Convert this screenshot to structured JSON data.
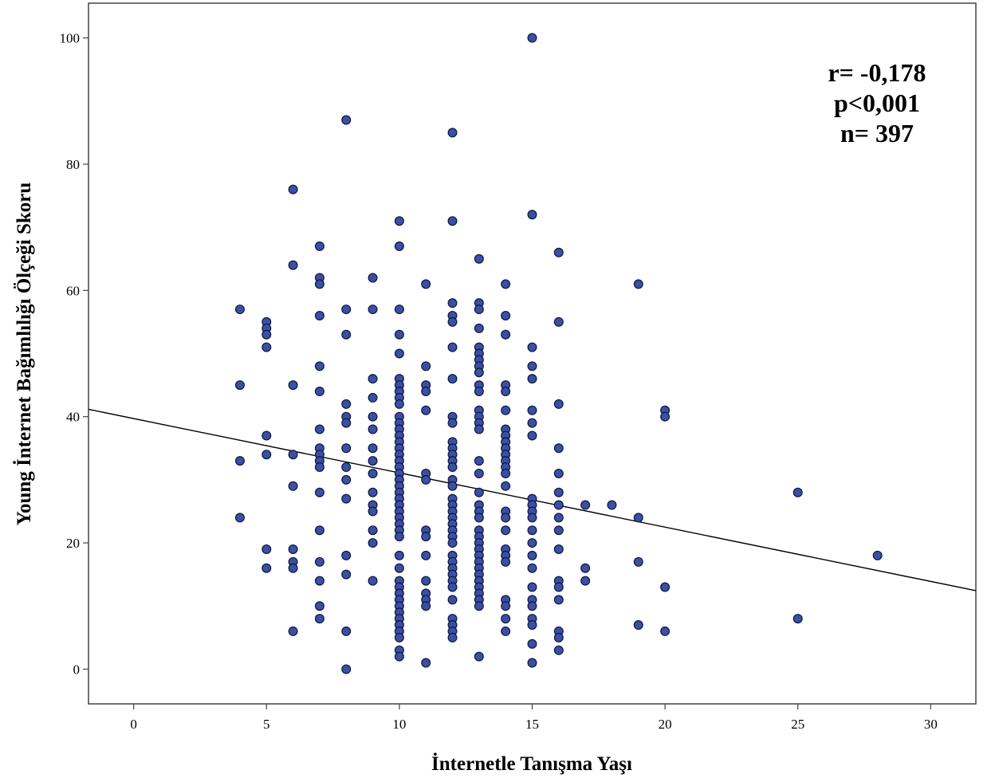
{
  "chart_data": {
    "type": "scatter",
    "title": "",
    "xlabel": "İnternetle Tanışma Yaşı",
    "ylabel": "Young İnternet Bağımlılığı Ölçeği Skoru",
    "xlim": [
      -1.7,
      31.7
    ],
    "ylim": [
      -5.5,
      105.5
    ],
    "x_ticks": [
      0,
      5,
      10,
      15,
      20,
      25,
      30
    ],
    "y_ticks": [
      0,
      20,
      40,
      60,
      80,
      100
    ],
    "grid": false,
    "legend": "none",
    "annotations": [
      "r= -0,178",
      "p<0,001",
      "n= 397"
    ],
    "fit_line": {
      "intercept": 39.7,
      "slope": -0.86
    },
    "colors": {
      "marker_fill": "#3b4fa3",
      "marker_edge": "#0d1840",
      "line": "#000000"
    },
    "points": [
      [
        4,
        57
      ],
      [
        4,
        45
      ],
      [
        4,
        33
      ],
      [
        4,
        24
      ],
      [
        5,
        55
      ],
      [
        5,
        54
      ],
      [
        5,
        53
      ],
      [
        5,
        51
      ],
      [
        5,
        37
      ],
      [
        5,
        34
      ],
      [
        5,
        19
      ],
      [
        5,
        16
      ],
      [
        6,
        76
      ],
      [
        6,
        64
      ],
      [
        6,
        45
      ],
      [
        6,
        34
      ],
      [
        6,
        29
      ],
      [
        6,
        19
      ],
      [
        6,
        17
      ],
      [
        6,
        16
      ],
      [
        6,
        6
      ],
      [
        7,
        67
      ],
      [
        7,
        62
      ],
      [
        7,
        61
      ],
      [
        7,
        56
      ],
      [
        7,
        48
      ],
      [
        7,
        44
      ],
      [
        7,
        38
      ],
      [
        7,
        35
      ],
      [
        7,
        34
      ],
      [
        7,
        33
      ],
      [
        7,
        32
      ],
      [
        7,
        28
      ],
      [
        7,
        22
      ],
      [
        7,
        17
      ],
      [
        7,
        14
      ],
      [
        7,
        10
      ],
      [
        7,
        8
      ],
      [
        8,
        87
      ],
      [
        8,
        57
      ],
      [
        8,
        53
      ],
      [
        8,
        42
      ],
      [
        8,
        40
      ],
      [
        8,
        39
      ],
      [
        8,
        35
      ],
      [
        8,
        32
      ],
      [
        8,
        30
      ],
      [
        8,
        27
      ],
      [
        8,
        18
      ],
      [
        8,
        15
      ],
      [
        8,
        6
      ],
      [
        8,
        0
      ],
      [
        9,
        62
      ],
      [
        9,
        57
      ],
      [
        9,
        46
      ],
      [
        9,
        43
      ],
      [
        9,
        40
      ],
      [
        9,
        38
      ],
      [
        9,
        35
      ],
      [
        9,
        33
      ],
      [
        9,
        31
      ],
      [
        9,
        28
      ],
      [
        9,
        26
      ],
      [
        9,
        25
      ],
      [
        9,
        22
      ],
      [
        9,
        20
      ],
      [
        9,
        14
      ],
      [
        10,
        71
      ],
      [
        10,
        67
      ],
      [
        10,
        57
      ],
      [
        10,
        53
      ],
      [
        10,
        50
      ],
      [
        10,
        46
      ],
      [
        10,
        45
      ],
      [
        10,
        44
      ],
      [
        10,
        43
      ],
      [
        10,
        42
      ],
      [
        10,
        40
      ],
      [
        10,
        39
      ],
      [
        10,
        38
      ],
      [
        10,
        37
      ],
      [
        10,
        36
      ],
      [
        10,
        35
      ],
      [
        10,
        34
      ],
      [
        10,
        33
      ],
      [
        10,
        32
      ],
      [
        10,
        31
      ],
      [
        10,
        30
      ],
      [
        10,
        29
      ],
      [
        10,
        28
      ],
      [
        10,
        27
      ],
      [
        10,
        26
      ],
      [
        10,
        25
      ],
      [
        10,
        24
      ],
      [
        10,
        23
      ],
      [
        10,
        22
      ],
      [
        10,
        21
      ],
      [
        10,
        18
      ],
      [
        10,
        16
      ],
      [
        10,
        14
      ],
      [
        10,
        13
      ],
      [
        10,
        12
      ],
      [
        10,
        11
      ],
      [
        10,
        10
      ],
      [
        10,
        9
      ],
      [
        10,
        8
      ],
      [
        10,
        7
      ],
      [
        10,
        6
      ],
      [
        10,
        5
      ],
      [
        10,
        3
      ],
      [
        10,
        2
      ],
      [
        11,
        61
      ],
      [
        11,
        48
      ],
      [
        11,
        45
      ],
      [
        11,
        44
      ],
      [
        11,
        41
      ],
      [
        11,
        31
      ],
      [
        11,
        30
      ],
      [
        11,
        22
      ],
      [
        11,
        21
      ],
      [
        11,
        18
      ],
      [
        11,
        14
      ],
      [
        11,
        12
      ],
      [
        11,
        11
      ],
      [
        11,
        10
      ],
      [
        11,
        1
      ],
      [
        12,
        85
      ],
      [
        12,
        71
      ],
      [
        12,
        58
      ],
      [
        12,
        56
      ],
      [
        12,
        55
      ],
      [
        12,
        51
      ],
      [
        12,
        46
      ],
      [
        12,
        40
      ],
      [
        12,
        39
      ],
      [
        12,
        36
      ],
      [
        12,
        35
      ],
      [
        12,
        34
      ],
      [
        12,
        33
      ],
      [
        12,
        32
      ],
      [
        12,
        30
      ],
      [
        12,
        29
      ],
      [
        12,
        27
      ],
      [
        12,
        26
      ],
      [
        12,
        25
      ],
      [
        12,
        24
      ],
      [
        12,
        23
      ],
      [
        12,
        22
      ],
      [
        12,
        21
      ],
      [
        12,
        20
      ],
      [
        12,
        18
      ],
      [
        12,
        17
      ],
      [
        12,
        16
      ],
      [
        12,
        15
      ],
      [
        12,
        14
      ],
      [
        12,
        13
      ],
      [
        12,
        11
      ],
      [
        12,
        8
      ],
      [
        12,
        7
      ],
      [
        12,
        6
      ],
      [
        12,
        5
      ],
      [
        13,
        65
      ],
      [
        13,
        58
      ],
      [
        13,
        57
      ],
      [
        13,
        54
      ],
      [
        13,
        51
      ],
      [
        13,
        50
      ],
      [
        13,
        49
      ],
      [
        13,
        48
      ],
      [
        13,
        47
      ],
      [
        13,
        45
      ],
      [
        13,
        44
      ],
      [
        13,
        41
      ],
      [
        13,
        40
      ],
      [
        13,
        39
      ],
      [
        13,
        38
      ],
      [
        13,
        33
      ],
      [
        13,
        31
      ],
      [
        13,
        28
      ],
      [
        13,
        26
      ],
      [
        13,
        25
      ],
      [
        13,
        24
      ],
      [
        13,
        22
      ],
      [
        13,
        21
      ],
      [
        13,
        20
      ],
      [
        13,
        19
      ],
      [
        13,
        18
      ],
      [
        13,
        17
      ],
      [
        13,
        16
      ],
      [
        13,
        15
      ],
      [
        13,
        14
      ],
      [
        13,
        13
      ],
      [
        13,
        12
      ],
      [
        13,
        11
      ],
      [
        13,
        10
      ],
      [
        13,
        2
      ],
      [
        14,
        61
      ],
      [
        14,
        56
      ],
      [
        14,
        53
      ],
      [
        14,
        45
      ],
      [
        14,
        44
      ],
      [
        14,
        41
      ],
      [
        14,
        38
      ],
      [
        14,
        37
      ],
      [
        14,
        36
      ],
      [
        14,
        35
      ],
      [
        14,
        34
      ],
      [
        14,
        33
      ],
      [
        14,
        32
      ],
      [
        14,
        31
      ],
      [
        14,
        29
      ],
      [
        14,
        25
      ],
      [
        14,
        24
      ],
      [
        14,
        22
      ],
      [
        14,
        19
      ],
      [
        14,
        18
      ],
      [
        14,
        17
      ],
      [
        14,
        11
      ],
      [
        14,
        10
      ],
      [
        14,
        8
      ],
      [
        14,
        6
      ],
      [
        15,
        100
      ],
      [
        15,
        72
      ],
      [
        15,
        51
      ],
      [
        15,
        48
      ],
      [
        15,
        46
      ],
      [
        15,
        41
      ],
      [
        15,
        39
      ],
      [
        15,
        37
      ],
      [
        15,
        27
      ],
      [
        15,
        26
      ],
      [
        15,
        25
      ],
      [
        15,
        24
      ],
      [
        15,
        22
      ],
      [
        15,
        20
      ],
      [
        15,
        18
      ],
      [
        15,
        16
      ],
      [
        15,
        13
      ],
      [
        15,
        11
      ],
      [
        15,
        10
      ],
      [
        15,
        8
      ],
      [
        15,
        7
      ],
      [
        15,
        4
      ],
      [
        15,
        1
      ],
      [
        16,
        66
      ],
      [
        16,
        55
      ],
      [
        16,
        42
      ],
      [
        16,
        35
      ],
      [
        16,
        31
      ],
      [
        16,
        28
      ],
      [
        16,
        26
      ],
      [
        16,
        24
      ],
      [
        16,
        22
      ],
      [
        16,
        19
      ],
      [
        16,
        14
      ],
      [
        16,
        13
      ],
      [
        16,
        11
      ],
      [
        16,
        6
      ],
      [
        16,
        5
      ],
      [
        16,
        3
      ],
      [
        17,
        26
      ],
      [
        17,
        16
      ],
      [
        17,
        14
      ],
      [
        18,
        26
      ],
      [
        19,
        61
      ],
      [
        19,
        24
      ],
      [
        19,
        17
      ],
      [
        19,
        7
      ],
      [
        20,
        41
      ],
      [
        20,
        40
      ],
      [
        20,
        13
      ],
      [
        20,
        6
      ],
      [
        25,
        28
      ],
      [
        25,
        8
      ],
      [
        28,
        18
      ]
    ]
  }
}
